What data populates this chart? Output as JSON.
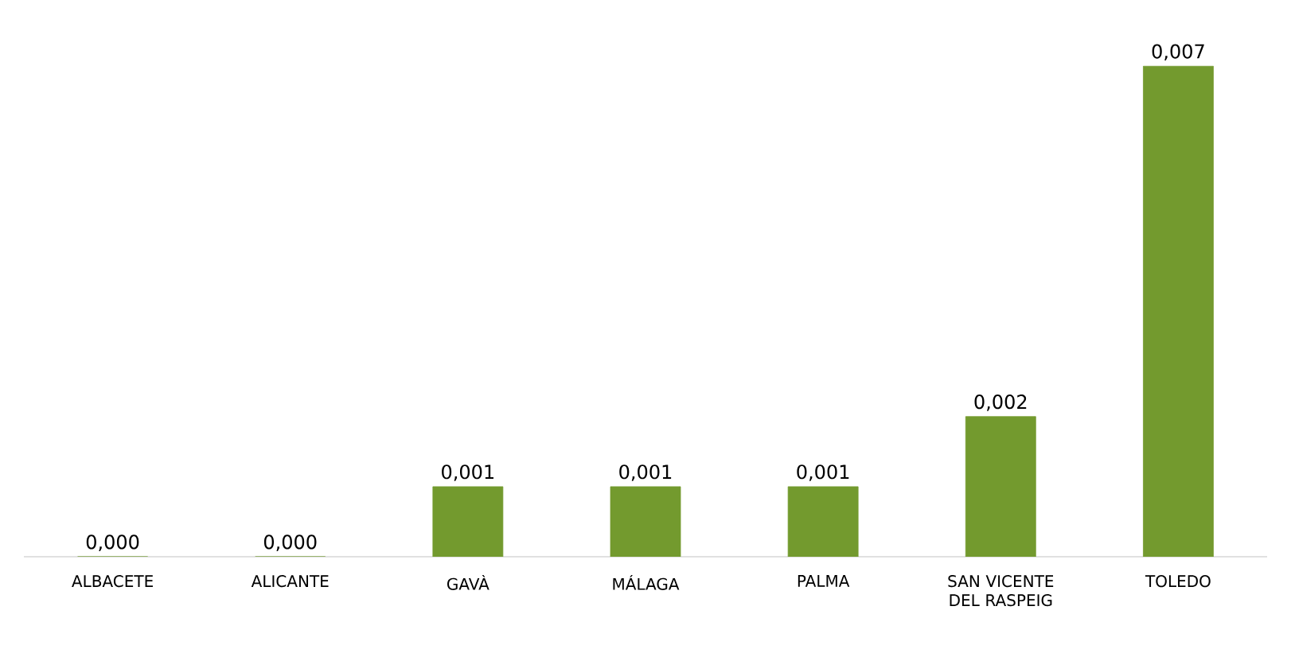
{
  "chart_data": {
    "type": "bar",
    "categories": [
      "ALBACETE",
      "ALICANTE",
      "GAVÀ",
      "MÁLAGA",
      "PALMA",
      "SAN VICENTE DEL RASPEIG",
      "TOLEDO"
    ],
    "values": [
      0,
      0,
      0.001,
      0.001,
      0.001,
      0.002,
      0.007
    ],
    "value_labels": [
      "0,000",
      "0,000",
      "0,001",
      "0,001",
      "0,001",
      "0,002",
      "0,007"
    ],
    "color": "#739a2e"
  }
}
